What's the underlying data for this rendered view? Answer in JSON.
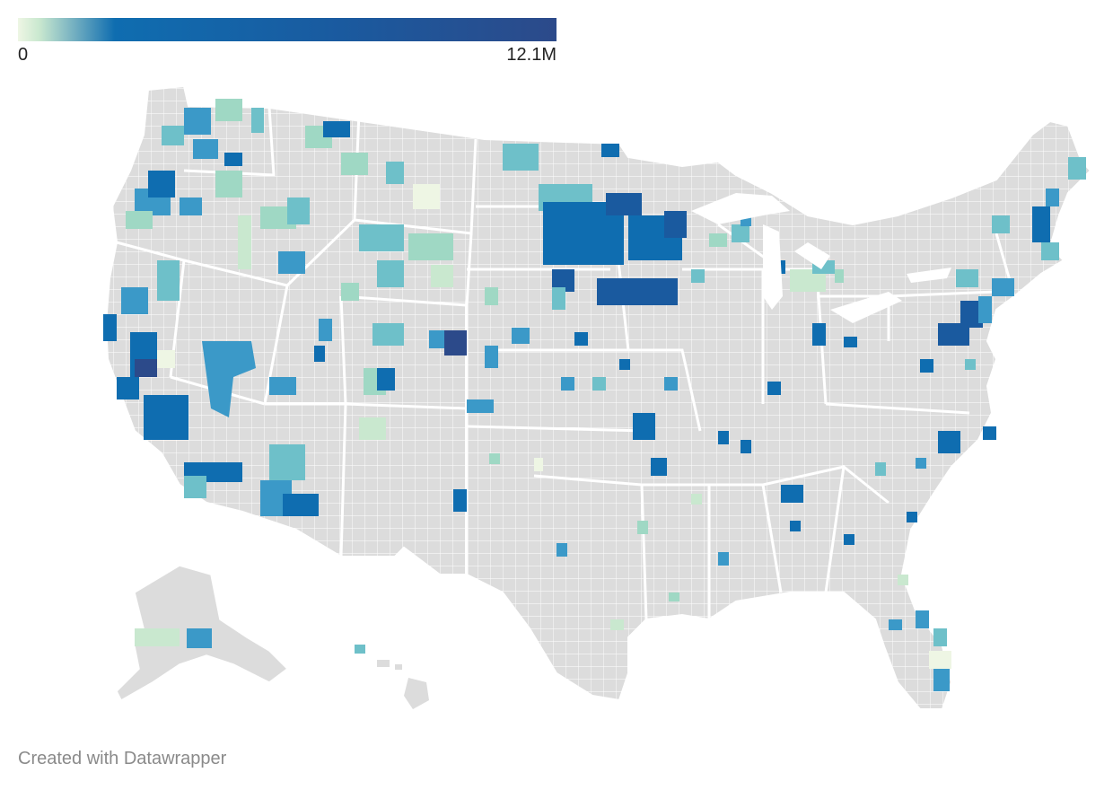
{
  "legend": {
    "min_label": "0",
    "max_label": "12.1M",
    "min_value": 0,
    "max_value": 12100000,
    "colors": [
      "#eef6e4",
      "#c9e8cf",
      "#9fd8c4",
      "#6ec0c9",
      "#3b99c8",
      "#0f6db0",
      "#2c4a8a"
    ]
  },
  "map": {
    "type": "choropleth",
    "geography": "US counties",
    "no_data_color": "#dcdcdc",
    "border_color": "#ffffff"
  },
  "footer": {
    "credit": "Created with Datawrapper"
  }
}
